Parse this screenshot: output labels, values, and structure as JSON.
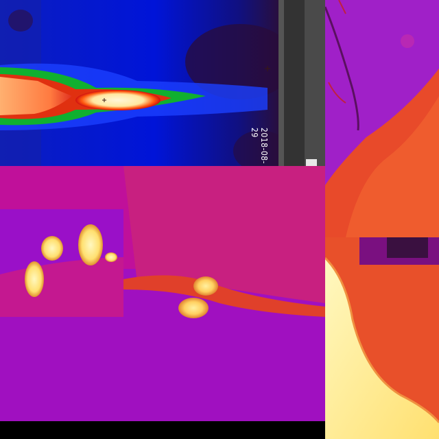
{
  "collage": {
    "description_tiles": [
      "thermal-plume-rainbow",
      "scrollbar-strip",
      "iron-ground-top-right",
      "iron-mid-panel",
      "iron-inset-hotspots",
      "iron-bottom-right"
    ],
    "timestamp_text": "2018-08-29",
    "palettes": {
      "rainbow": [
        "#000066",
        "#0a1cc8",
        "#00a020",
        "#e83010",
        "#ffe8b0"
      ],
      "iron": [
        "#8a00c0",
        "#c0109a",
        "#e0402a",
        "#f08a30",
        "#ffe880"
      ]
    }
  }
}
